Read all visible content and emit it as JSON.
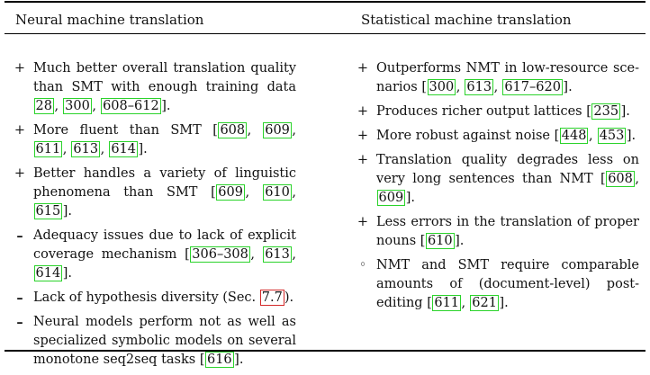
{
  "headers": {
    "left": "Neural machine translation",
    "right": "Statistical machine translation"
  },
  "colors": {
    "citation_box": "#2bd32b",
    "section_ref_box": "#d42a2a"
  },
  "left_items": [
    {
      "marker": "+",
      "marker_name": "plus-icon",
      "segments": [
        {
          "t": "Much better overall translation qual­ity than SMT with enough training data "
        },
        {
          "c": "28"
        },
        {
          "t": ", "
        },
        {
          "c": "300"
        },
        {
          "t": ", "
        },
        {
          "c": "608–612"
        },
        {
          "t": "]."
        }
      ]
    },
    {
      "marker": "+",
      "marker_name": "plus-icon",
      "segments": [
        {
          "t": "More fluent than SMT ["
        },
        {
          "c": "608"
        },
        {
          "t": ", "
        },
        {
          "c": "609"
        },
        {
          "t": ", "
        },
        {
          "c": "611"
        },
        {
          "t": ", "
        },
        {
          "c": "613"
        },
        {
          "t": ", "
        },
        {
          "c": "614"
        },
        {
          "t": "]."
        }
      ]
    },
    {
      "marker": "+",
      "marker_name": "plus-icon",
      "segments": [
        {
          "t": "Better handles a variety of linguistic phenomena than SMT ["
        },
        {
          "c": "609"
        },
        {
          "t": ", "
        },
        {
          "c": "610"
        },
        {
          "t": ", "
        },
        {
          "c": "615"
        },
        {
          "t": "]."
        }
      ]
    },
    {
      "marker": "–",
      "marker_name": "minus-icon",
      "segments": [
        {
          "t": "Adequacy issues due to lack of ex­plicit coverage mechanism ["
        },
        {
          "c": "306–308"
        },
        {
          "t": ", "
        },
        {
          "c": "613"
        },
        {
          "t": ", "
        },
        {
          "c": "614"
        },
        {
          "t": "]."
        }
      ]
    },
    {
      "marker": "–",
      "marker_name": "minus-icon",
      "segments": [
        {
          "t": "Lack of hypothesis diversity (Sec. "
        },
        {
          "r": "7.7"
        },
        {
          "t": ")."
        }
      ]
    },
    {
      "marker": "–",
      "marker_name": "minus-icon",
      "segments": [
        {
          "t": "Neural models perform not as well as specialized symbolic models on several monotone seq2seq tasks ["
        },
        {
          "c": "616"
        },
        {
          "t": "]."
        }
      ]
    }
  ],
  "right_items": [
    {
      "marker": "+",
      "marker_name": "plus-icon",
      "segments": [
        {
          "t": "Outperforms NMT in low-resource sce­narios ["
        },
        {
          "c": "300"
        },
        {
          "t": ", "
        },
        {
          "c": "613"
        },
        {
          "t": ", "
        },
        {
          "c": "617–620"
        },
        {
          "t": "]."
        }
      ]
    },
    {
      "marker": "+",
      "marker_name": "plus-icon",
      "segments": [
        {
          "t": "Produces richer output lattices ["
        },
        {
          "c": "235"
        },
        {
          "t": "]."
        }
      ]
    },
    {
      "marker": "+",
      "marker_name": "plus-icon",
      "segments": [
        {
          "t": "More robust against noise ["
        },
        {
          "c": "448"
        },
        {
          "t": ", "
        },
        {
          "c": "453"
        },
        {
          "t": "]."
        }
      ]
    },
    {
      "marker": "+",
      "marker_name": "plus-icon",
      "segments": [
        {
          "t": "Translation quality degrades less on very long sentences than NMT ["
        },
        {
          "c": "608"
        },
        {
          "t": ", "
        },
        {
          "c": "609"
        },
        {
          "t": "]."
        }
      ]
    },
    {
      "marker": "+",
      "marker_name": "plus-icon",
      "segments": [
        {
          "t": "Less errors in the translation of proper nouns ["
        },
        {
          "c": "610"
        },
        {
          "t": "]."
        }
      ]
    },
    {
      "marker": "◦",
      "marker_name": "circle-icon",
      "segments": [
        {
          "t": "NMT and SMT require compara­ble amounts of (document-level) post­editing ["
        },
        {
          "c": "611"
        },
        {
          "t": ", "
        },
        {
          "c": "621"
        },
        {
          "t": "]."
        }
      ]
    }
  ]
}
